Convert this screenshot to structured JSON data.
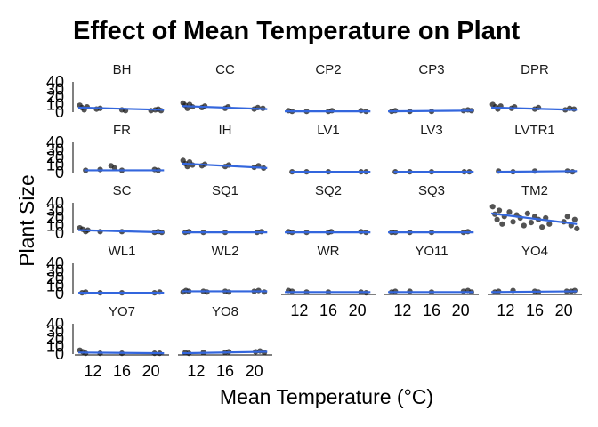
{
  "chart_data": {
    "type": "scatter",
    "title": "Effect of Mean Temperature on Plant",
    "xlabel": "Mean Temperature (°C)",
    "ylabel": "Plant Size",
    "xlim": [
      9.5,
      22.5
    ],
    "ylim": [
      0,
      40
    ],
    "x_ticks": [
      12,
      16,
      20
    ],
    "y_ticks": [
      0,
      10,
      20,
      30,
      40
    ],
    "facet_columns": 5,
    "trend_color": "#3366dd",
    "point_color": "#1a1a1a",
    "panels": [
      {
        "name": "BH",
        "points": [
          [
            10.2,
            9
          ],
          [
            10.5,
            6
          ],
          [
            10.8,
            3
          ],
          [
            11.2,
            7
          ],
          [
            12.5,
            4
          ],
          [
            13,
            5
          ],
          [
            16,
            3
          ],
          [
            16.5,
            2
          ],
          [
            20,
            2
          ],
          [
            20.6,
            3
          ],
          [
            21,
            4
          ],
          [
            21.4,
            2
          ]
        ],
        "trend": [
          [
            10,
            6
          ],
          [
            21.8,
            3
          ]
        ]
      },
      {
        "name": "CC",
        "points": [
          [
            10.2,
            12
          ],
          [
            10.5,
            9
          ],
          [
            10.8,
            5
          ],
          [
            11.1,
            10
          ],
          [
            11.5,
            7
          ],
          [
            12.8,
            6
          ],
          [
            13.2,
            8
          ],
          [
            16,
            5
          ],
          [
            16.4,
            7
          ],
          [
            20,
            4
          ],
          [
            20.5,
            6
          ],
          [
            21.2,
            5
          ]
        ],
        "trend": [
          [
            10,
            8
          ],
          [
            21.8,
            4
          ]
        ]
      },
      {
        "name": "CP2",
        "points": [
          [
            10.5,
            2
          ],
          [
            11,
            1
          ],
          [
            13,
            1
          ],
          [
            16,
            1
          ],
          [
            16.5,
            2
          ],
          [
            20.5,
            2
          ],
          [
            21.2,
            1
          ]
        ],
        "trend": [
          [
            10,
            1
          ],
          [
            21.8,
            1
          ]
        ]
      },
      {
        "name": "CP3",
        "points": [
          [
            10.5,
            1
          ],
          [
            11,
            2
          ],
          [
            13,
            1
          ],
          [
            16,
            1
          ],
          [
            20.4,
            2
          ],
          [
            21,
            3
          ],
          [
            21.5,
            2
          ]
        ],
        "trend": [
          [
            10,
            1
          ],
          [
            21.8,
            2
          ]
        ]
      },
      {
        "name": "DPR",
        "points": [
          [
            10.2,
            10
          ],
          [
            10.6,
            7
          ],
          [
            10.9,
            4
          ],
          [
            11.3,
            8
          ],
          [
            12.8,
            5
          ],
          [
            13.2,
            7
          ],
          [
            16,
            4
          ],
          [
            16.5,
            6
          ],
          [
            20.2,
            3
          ],
          [
            20.8,
            5
          ],
          [
            21.4,
            4
          ]
        ],
        "trend": [
          [
            10,
            6
          ],
          [
            21.8,
            3
          ]
        ]
      },
      {
        "name": "FR",
        "points": [
          [
            11,
            3
          ],
          [
            13,
            4
          ],
          [
            14.5,
            9
          ],
          [
            15,
            6
          ],
          [
            16,
            3
          ],
          [
            20.5,
            4
          ],
          [
            21,
            3
          ]
        ],
        "trend": [
          [
            10.8,
            3
          ],
          [
            21.8,
            3
          ]
        ]
      },
      {
        "name": "IH",
        "points": [
          [
            10.2,
            16
          ],
          [
            10.5,
            12
          ],
          [
            10.8,
            8
          ],
          [
            11.1,
            14
          ],
          [
            11.5,
            10
          ],
          [
            12.8,
            9
          ],
          [
            13.2,
            11
          ],
          [
            16,
            8
          ],
          [
            16.5,
            10
          ],
          [
            20,
            7
          ],
          [
            20.6,
            9
          ],
          [
            21.3,
            6
          ]
        ],
        "trend": [
          [
            10,
            12
          ],
          [
            21.8,
            6
          ]
        ]
      },
      {
        "name": "LV1",
        "points": [
          [
            11,
            1
          ],
          [
            13,
            1
          ],
          [
            16,
            1
          ],
          [
            20.5,
            1
          ],
          [
            21.2,
            1
          ]
        ],
        "trend": [
          [
            10.8,
            1
          ],
          [
            21.8,
            1
          ]
        ]
      },
      {
        "name": "LV3",
        "points": [
          [
            11,
            1
          ],
          [
            13,
            1
          ],
          [
            16,
            1
          ],
          [
            20.5,
            1
          ],
          [
            21.2,
            1
          ]
        ],
        "trend": [
          [
            10.8,
            1
          ],
          [
            21.8,
            1
          ]
        ]
      },
      {
        "name": "LVTR1",
        "points": [
          [
            11,
            2
          ],
          [
            13,
            1
          ],
          [
            16,
            2
          ],
          [
            20.5,
            2
          ],
          [
            21.2,
            1
          ]
        ],
        "trend": [
          [
            10.8,
            1
          ],
          [
            21.8,
            2
          ]
        ]
      },
      {
        "name": "SC",
        "points": [
          [
            10.2,
            7
          ],
          [
            10.6,
            5
          ],
          [
            11,
            2
          ],
          [
            11.3,
            4
          ],
          [
            13,
            2
          ],
          [
            16,
            2
          ],
          [
            20.5,
            1
          ],
          [
            21,
            2
          ],
          [
            21.5,
            1
          ]
        ],
        "trend": [
          [
            10,
            4
          ],
          [
            21.8,
            1
          ]
        ]
      },
      {
        "name": "SQ1",
        "points": [
          [
            10.5,
            1
          ],
          [
            11,
            2
          ],
          [
            13,
            1
          ],
          [
            16,
            1
          ],
          [
            20.4,
            1
          ],
          [
            21,
            2
          ]
        ],
        "trend": [
          [
            10,
            1
          ],
          [
            21.8,
            1
          ]
        ]
      },
      {
        "name": "SQ2",
        "points": [
          [
            10.5,
            2
          ],
          [
            11,
            1
          ],
          [
            13,
            1
          ],
          [
            16,
            1
          ],
          [
            16.4,
            2
          ],
          [
            20.5,
            2
          ],
          [
            21.2,
            1
          ]
        ],
        "trend": [
          [
            10,
            1
          ],
          [
            21.8,
            1
          ]
        ]
      },
      {
        "name": "SQ3",
        "points": [
          [
            10.5,
            1
          ],
          [
            11,
            1
          ],
          [
            13,
            1
          ],
          [
            16,
            1
          ],
          [
            20.4,
            1
          ],
          [
            21,
            2
          ]
        ],
        "trend": [
          [
            10,
            1
          ],
          [
            21.8,
            1
          ]
        ]
      },
      {
        "name": "TM2",
        "points": [
          [
            10.2,
            35
          ],
          [
            10.5,
            25
          ],
          [
            10.8,
            18
          ],
          [
            11.1,
            30
          ],
          [
            11.5,
            12
          ],
          [
            11.8,
            22
          ],
          [
            12.5,
            28
          ],
          [
            13,
            15
          ],
          [
            13.5,
            24
          ],
          [
            14,
            20
          ],
          [
            14.5,
            10
          ],
          [
            15,
            26
          ],
          [
            15.5,
            14
          ],
          [
            16,
            22
          ],
          [
            16.5,
            18
          ],
          [
            17,
            8
          ],
          [
            17.5,
            20
          ],
          [
            18,
            12
          ],
          [
            20,
            15
          ],
          [
            20.5,
            22
          ],
          [
            21,
            10
          ],
          [
            21.5,
            18
          ],
          [
            21.8,
            6
          ]
        ],
        "trend": [
          [
            10,
            26
          ],
          [
            21.8,
            12
          ]
        ]
      },
      {
        "name": "WL1",
        "points": [
          [
            10.5,
            1
          ],
          [
            11,
            2
          ],
          [
            13,
            1
          ],
          [
            16,
            1
          ],
          [
            20.5,
            1
          ],
          [
            21.2,
            2
          ]
        ],
        "trend": [
          [
            10,
            1
          ],
          [
            21.8,
            1
          ]
        ]
      },
      {
        "name": "WL2",
        "points": [
          [
            10.2,
            2
          ],
          [
            10.6,
            4
          ],
          [
            11,
            3
          ],
          [
            13,
            3
          ],
          [
            13.5,
            2
          ],
          [
            16,
            3
          ],
          [
            16.5,
            2
          ],
          [
            20,
            3
          ],
          [
            20.6,
            4
          ],
          [
            21.4,
            2
          ]
        ],
        "trend": [
          [
            10,
            3
          ],
          [
            21.8,
            3
          ]
        ]
      },
      {
        "name": "WR",
        "points": [
          [
            10.5,
            4
          ],
          [
            11,
            3
          ],
          [
            13,
            2
          ],
          [
            16,
            2
          ],
          [
            20.5,
            2
          ],
          [
            21.2,
            1
          ]
        ],
        "trend": [
          [
            10,
            2
          ],
          [
            21.8,
            2
          ]
        ]
      },
      {
        "name": "YO11",
        "points": [
          [
            10.5,
            2
          ],
          [
            11,
            3
          ],
          [
            13,
            3
          ],
          [
            16,
            2
          ],
          [
            20.4,
            3
          ],
          [
            21,
            4
          ],
          [
            21.5,
            2
          ]
        ],
        "trend": [
          [
            10,
            2
          ],
          [
            21.8,
            2
          ]
        ]
      },
      {
        "name": "YO4",
        "points": [
          [
            10.5,
            2
          ],
          [
            11,
            3
          ],
          [
            13,
            4
          ],
          [
            16,
            3
          ],
          [
            16.5,
            2
          ],
          [
            20.4,
            3
          ],
          [
            21,
            3
          ],
          [
            21.5,
            4
          ]
        ],
        "trend": [
          [
            10,
            2
          ],
          [
            21.8,
            3
          ]
        ]
      },
      {
        "name": "YO7",
        "points": [
          [
            10.2,
            5
          ],
          [
            10.6,
            3
          ],
          [
            11,
            1
          ],
          [
            13,
            1
          ],
          [
            16,
            1
          ],
          [
            20.5,
            1
          ],
          [
            21.2,
            1
          ]
        ],
        "trend": [
          [
            10,
            2
          ],
          [
            21.8,
            1
          ]
        ]
      },
      {
        "name": "YO8",
        "points": [
          [
            10.5,
            2
          ],
          [
            11,
            1
          ],
          [
            13,
            2
          ],
          [
            16,
            2
          ],
          [
            16.5,
            3
          ],
          [
            20.2,
            3
          ],
          [
            20.8,
            4
          ],
          [
            21.4,
            2
          ]
        ],
        "trend": [
          [
            10,
            1
          ],
          [
            21.8,
            3
          ]
        ]
      }
    ]
  }
}
